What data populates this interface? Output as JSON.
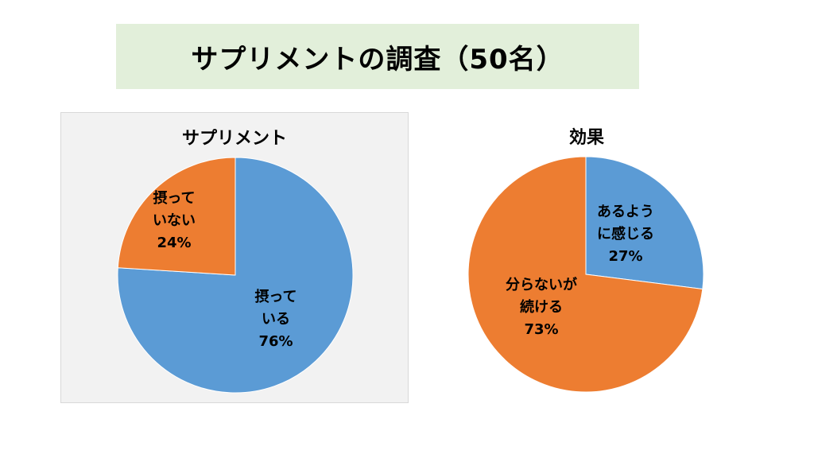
{
  "title": "サプリメントの調査（50名）",
  "colors": {
    "blue": "#5b9bd5",
    "orange": "#ed7d31",
    "title_bg": "#e2efda"
  },
  "chart_data": [
    {
      "type": "pie",
      "title": "サプリメント",
      "slices": [
        {
          "label_lines": [
            "摂って",
            "いる"
          ],
          "percent_label": "76%",
          "value": 76,
          "color": "#5b9bd5"
        },
        {
          "label_lines": [
            "摂って",
            "いない"
          ],
          "percent_label": "24%",
          "value": 24,
          "color": "#ed7d31"
        }
      ]
    },
    {
      "type": "pie",
      "title": "効果",
      "slices": [
        {
          "label_lines": [
            "あるよう",
            "に感じる"
          ],
          "percent_label": "27%",
          "value": 27,
          "color": "#5b9bd5"
        },
        {
          "label_lines": [
            "分らないが",
            "続ける"
          ],
          "percent_label": "73%",
          "value": 73,
          "color": "#ed7d31"
        }
      ]
    }
  ]
}
